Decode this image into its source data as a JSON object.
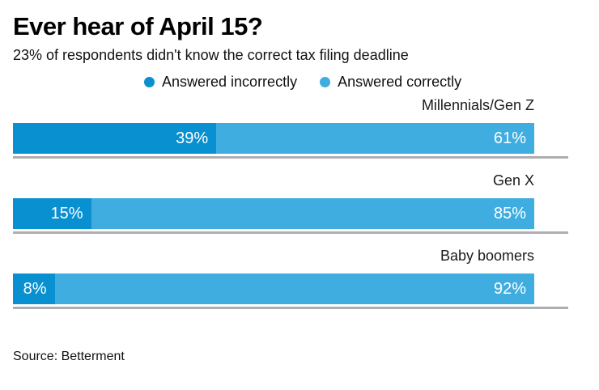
{
  "chart_data": {
    "type": "bar",
    "orientation": "horizontal",
    "stacked": true,
    "title": "Ever hear of April 15?",
    "subtitle": "23% of respondents didn't know the correct tax filing deadline",
    "source": "Source: Betterment",
    "categories": [
      "Millennials/Gen Z",
      "Gen X",
      "Baby boomers"
    ],
    "series": [
      {
        "name": "Answered incorrectly",
        "color": "#0990d1",
        "values": [
          39,
          15,
          8
        ]
      },
      {
        "name": "Answered correctly",
        "color": "#3fade0",
        "values": [
          61,
          85,
          92
        ]
      }
    ],
    "value_suffix": "%",
    "xlim": [
      0,
      100
    ],
    "legend_position": "top-center",
    "value_label_color": "#ffffff",
    "grid": false
  }
}
